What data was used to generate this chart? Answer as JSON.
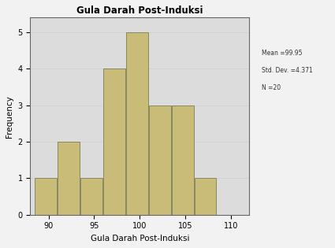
{
  "title": "Gula Darah Post-Induksi",
  "xlabel": "Gula Darah Post-Induksi",
  "ylabel": "Frequency",
  "bar_color": "#c8bc78",
  "bar_edgecolor": "#888860",
  "background_color": "#dcdcdc",
  "fig_color": "#f2f2f2",
  "xlim": [
    88,
    112
  ],
  "ylim": [
    0,
    5.4
  ],
  "xticks": [
    90,
    95,
    100,
    105,
    110
  ],
  "yticks": [
    0,
    1,
    2,
    3,
    4,
    5
  ],
  "bar_lefts": [
    88.5,
    91.0,
    93.5,
    96.0,
    98.5,
    101.0,
    103.5,
    106.0
  ],
  "bar_heights": [
    1,
    2,
    1,
    4,
    5,
    3,
    3,
    1
  ],
  "bar_width": 2.4,
  "note_mean": "Mean =99.95",
  "note_std": "Std. Dev. =4.371",
  "note_n": "N =20",
  "note_fontsize": 5.5
}
